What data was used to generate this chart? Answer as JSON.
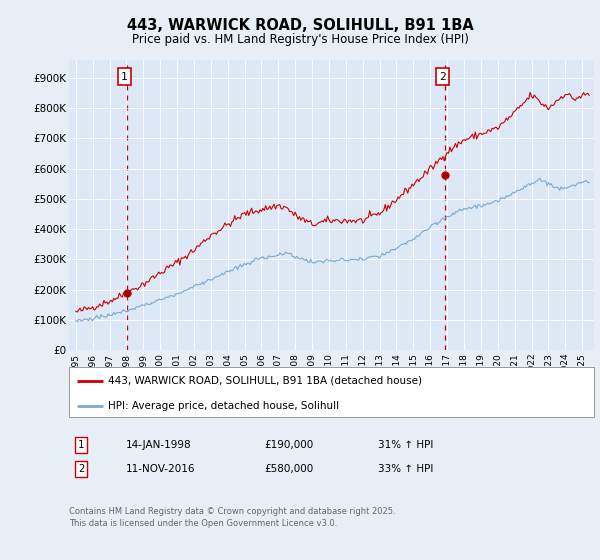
{
  "title": "443, WARWICK ROAD, SOLIHULL, B91 1BA",
  "subtitle": "Price paid vs. HM Land Registry's House Price Index (HPI)",
  "background_color": "#e8eef5",
  "plot_bg_color": "#dce8f5",
  "yticks": [
    0,
    100000,
    200000,
    300000,
    400000,
    500000,
    600000,
    700000,
    800000,
    900000
  ],
  "ytick_labels": [
    "£0",
    "£100K",
    "£200K",
    "£300K",
    "£400K",
    "£500K",
    "£600K",
    "£700K",
    "£800K",
    "£900K"
  ],
  "ylim": [
    0,
    960000
  ],
  "xlim_start": 1994.6,
  "xlim_end": 2025.7,
  "sale1_x": 1998.04,
  "sale1_y": 190000,
  "sale2_x": 2016.87,
  "sale2_y": 580000,
  "red_line_color": "#cc0000",
  "blue_line_color": "#7aaad0",
  "dashed_line_color": "#cc0000",
  "legend_label_red": "443, WARWICK ROAD, SOLIHULL, B91 1BA (detached house)",
  "legend_label_blue": "HPI: Average price, detached house, Solihull",
  "footer_text": "Contains HM Land Registry data © Crown copyright and database right 2025.\nThis data is licensed under the Open Government Licence v3.0.",
  "xtick_years": [
    1995,
    1996,
    1997,
    1998,
    1999,
    2000,
    2001,
    2002,
    2003,
    2004,
    2005,
    2006,
    2007,
    2008,
    2009,
    2010,
    2011,
    2012,
    2013,
    2014,
    2015,
    2016,
    2017,
    2018,
    2019,
    2020,
    2021,
    2022,
    2023,
    2024,
    2025
  ],
  "sale1_date": "14-JAN-1998",
  "sale1_price": "£190,000",
  "sale1_hpi": "31% ↑ HPI",
  "sale2_date": "11-NOV-2016",
  "sale2_price": "£580,000",
  "sale2_hpi": "33% ↑ HPI"
}
